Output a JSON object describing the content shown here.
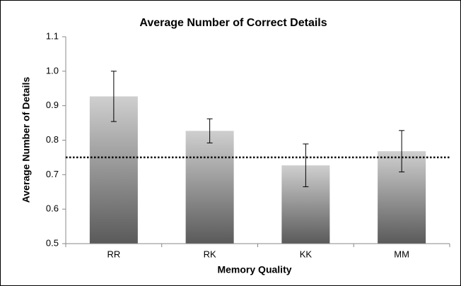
{
  "chart_data": {
    "type": "bar",
    "title": "Average Number of Correct Details",
    "x_label": "Memory Quality",
    "y_label": "Average Number of Details",
    "categories": [
      "RR",
      "RK",
      "KK",
      "MM"
    ],
    "values": [
      0.927,
      0.827,
      0.727,
      0.768
    ],
    "errors": [
      0.073,
      0.035,
      0.062,
      0.06
    ],
    "reference_line": 0.75,
    "ylim": [
      0.5,
      1.1
    ],
    "yticks": [
      0.5,
      0.6,
      0.7,
      0.8,
      0.9,
      {
        "value": 1,
        "label": "1.0"
      },
      1.1
    ],
    "grid": false
  }
}
